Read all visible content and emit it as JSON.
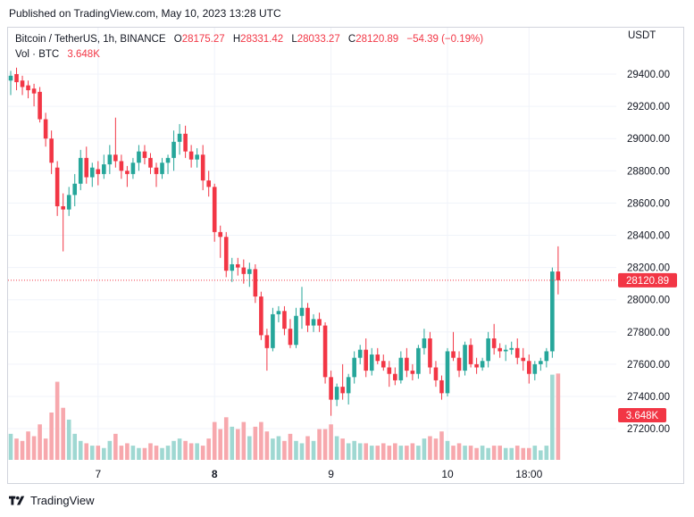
{
  "header": {
    "published": "Published on TradingView.com, May 10, 2023 13:28 UTC"
  },
  "legend": {
    "symbol": "Bitcoin / TetherUS, 1h, BINANCE",
    "o_label": "O",
    "o_value": "28175.27",
    "h_label": "H",
    "h_value": "28331.42",
    "l_label": "L",
    "l_value": "28033.27",
    "c_label": "C",
    "c_value": "28120.89",
    "change": "−54.39 (−0.19%)",
    "vol_label": "Vol · BTC",
    "vol_value": "3.648K"
  },
  "currency": "USDT",
  "footer": {
    "brand": "TradingView"
  },
  "colors": {
    "up": "#26a69a",
    "down": "#f23645",
    "up_vol": "#9fd8d2",
    "down_vol": "#f7a8ad",
    "grid": "#f0f3fa"
  },
  "chart_data": {
    "type": "candlestick",
    "symbol": "BTCUSDT",
    "interval": "1h",
    "ylim": [
      27050,
      29580
    ],
    "yticks": [
      29400,
      29200,
      29000,
      28800,
      28600,
      28400,
      28200,
      28000,
      27800,
      27600,
      27400,
      27200
    ],
    "ytick_labels": [
      "29400.00",
      "29200.00",
      "29000.00",
      "28800.00",
      "28600.00",
      "28400.00",
      "28200.00",
      "28000.00",
      "27800.00",
      "27600.00",
      "27400.00",
      "27200.00"
    ],
    "last_price": 28120.89,
    "last_price_label": "28120.89",
    "last_volume_label": "3.648K",
    "xtick_index": [
      15,
      35,
      55,
      75,
      89
    ],
    "xtick_labels": [
      "7",
      "8",
      "9",
      "10",
      "18:00"
    ],
    "xtick_bold": [
      false,
      true,
      false,
      false,
      false
    ],
    "candles": [
      [
        29360,
        29420,
        29270,
        29390
      ],
      [
        29400,
        29440,
        29300,
        29350
      ],
      [
        29360,
        29390,
        29270,
        29320
      ],
      [
        29330,
        29360,
        29250,
        29300
      ],
      [
        29310,
        29340,
        29200,
        29280
      ],
      [
        29290,
        29320,
        29100,
        29120
      ],
      [
        29120,
        29160,
        28950,
        29000
      ],
      [
        29000,
        29050,
        28780,
        28850
      ],
      [
        28820,
        28860,
        28520,
        28580
      ],
      [
        28580,
        28660,
        28300,
        28560
      ],
      [
        28560,
        28700,
        28520,
        28650
      ],
      [
        28650,
        28780,
        28580,
        28720
      ],
      [
        28720,
        28930,
        28680,
        28880
      ],
      [
        28880,
        28950,
        28720,
        28760
      ],
      [
        28760,
        28850,
        28700,
        28820
      ],
      [
        28810,
        28860,
        28710,
        28780
      ],
      [
        28780,
        28900,
        28750,
        28840
      ],
      [
        28840,
        28960,
        28780,
        28900
      ],
      [
        28900,
        29130,
        28820,
        28860
      ],
      [
        28860,
        28900,
        28750,
        28800
      ],
      [
        28800,
        28830,
        28700,
        28780
      ],
      [
        28780,
        28880,
        28750,
        28850
      ],
      [
        28850,
        28960,
        28800,
        28920
      ],
      [
        28920,
        28960,
        28840,
        28880
      ],
      [
        28880,
        28910,
        28780,
        28820
      ],
      [
        28820,
        28850,
        28700,
        28780
      ],
      [
        28780,
        28880,
        28750,
        28850
      ],
      [
        28850,
        28900,
        28780,
        28880
      ],
      [
        28880,
        29050,
        28800,
        28980
      ],
      [
        28980,
        29090,
        28900,
        29030
      ],
      [
        29030,
        29080,
        28880,
        28920
      ],
      [
        28920,
        28960,
        28820,
        28870
      ],
      [
        28870,
        28940,
        28820,
        28900
      ],
      [
        28900,
        28960,
        28680,
        28740
      ],
      [
        28740,
        28800,
        28640,
        28700
      ],
      [
        28700,
        28720,
        28360,
        28420
      ],
      [
        28420,
        28460,
        28260,
        28390
      ],
      [
        28390,
        28420,
        28140,
        28180
      ],
      [
        28180,
        28260,
        28110,
        28220
      ],
      [
        28220,
        28260,
        28150,
        28200
      ],
      [
        28200,
        28250,
        28100,
        28160
      ],
      [
        28160,
        28230,
        28080,
        28190
      ],
      [
        28190,
        28220,
        27980,
        28020
      ],
      [
        28020,
        28050,
        27750,
        27780
      ],
      [
        27780,
        27820,
        27560,
        27700
      ],
      [
        27700,
        27950,
        27680,
        27910
      ],
      [
        27910,
        27960,
        27860,
        27930
      ],
      [
        27930,
        27960,
        27780,
        27820
      ],
      [
        27820,
        27880,
        27700,
        27720
      ],
      [
        27720,
        27950,
        27700,
        27900
      ],
      [
        27900,
        28080,
        27820,
        27950
      ],
      [
        27950,
        27980,
        27800,
        27840
      ],
      [
        27840,
        27910,
        27800,
        27880
      ],
      [
        27880,
        27920,
        27800,
        27840
      ],
      [
        27840,
        27860,
        27480,
        27520
      ],
      [
        27520,
        27560,
        27280,
        27380
      ],
      [
        27380,
        27480,
        27340,
        27460
      ],
      [
        27460,
        27600,
        27380,
        27420
      ],
      [
        27420,
        27540,
        27350,
        27520
      ],
      [
        27520,
        27680,
        27480,
        27640
      ],
      [
        27640,
        27720,
        27600,
        27690
      ],
      [
        27690,
        27760,
        27520,
        27560
      ],
      [
        27560,
        27700,
        27530,
        27660
      ],
      [
        27660,
        27700,
        27600,
        27620
      ],
      [
        27620,
        27660,
        27560,
        27580
      ],
      [
        27580,
        27620,
        27460,
        27540
      ],
      [
        27540,
        27580,
        27470,
        27500
      ],
      [
        27500,
        27680,
        27480,
        27640
      ],
      [
        27640,
        27700,
        27520,
        27560
      ],
      [
        27560,
        27600,
        27500,
        27540
      ],
      [
        27540,
        27720,
        27510,
        27700
      ],
      [
        27700,
        27820,
        27660,
        27760
      ],
      [
        27760,
        27800,
        27540,
        27580
      ],
      [
        27580,
        27620,
        27460,
        27500
      ],
      [
        27500,
        27530,
        27380,
        27420
      ],
      [
        27420,
        27700,
        27400,
        27680
      ],
      [
        27680,
        27800,
        27620,
        27640
      ],
      [
        27640,
        27680,
        27520,
        27560
      ],
      [
        27560,
        27740,
        27530,
        27720
      ],
      [
        27720,
        27760,
        27580,
        27600
      ],
      [
        27600,
        27640,
        27540,
        27580
      ],
      [
        27580,
        27640,
        27560,
        27620
      ],
      [
        27620,
        27800,
        27580,
        27760
      ],
      [
        27760,
        27850,
        27660,
        27700
      ],
      [
        27700,
        27730,
        27640,
        27680
      ],
      [
        27680,
        27720,
        27620,
        27690
      ],
      [
        27690,
        27740,
        27660,
        27700
      ],
      [
        27700,
        27760,
        27600,
        27640
      ],
      [
        27640,
        27700,
        27560,
        27620
      ],
      [
        27620,
        27660,
        27480,
        27540
      ],
      [
        27540,
        27620,
        27500,
        27600
      ],
      [
        27600,
        27640,
        27560,
        27620
      ],
      [
        27620,
        27700,
        27580,
        27680
      ],
      [
        27680,
        28200,
        27640,
        28175
      ],
      [
        28175.27,
        28331.42,
        28033.27,
        28120.89
      ]
    ],
    "volumes": [
      1.1,
      0.9,
      0.8,
      1.2,
      1.0,
      1.5,
      0.9,
      2.0,
      3.3,
      2.2,
      1.7,
      1.1,
      0.8,
      0.7,
      0.6,
      0.6,
      0.5,
      0.8,
      1.1,
      0.6,
      0.7,
      0.6,
      0.5,
      0.5,
      0.7,
      0.6,
      0.5,
      0.6,
      0.8,
      0.9,
      0.8,
      0.7,
      0.7,
      0.6,
      0.9,
      1.6,
      1.3,
      1.8,
      1.4,
      1.3,
      1.6,
      1.0,
      1.4,
      1.6,
      1.2,
      0.9,
      1.0,
      0.8,
      1.1,
      0.8,
      0.7,
      1.0,
      0.8,
      1.3,
      1.3,
      1.5,
      1.0,
      0.9,
      0.7,
      0.8,
      0.7,
      0.7,
      0.6,
      0.6,
      0.7,
      0.6,
      0.7,
      0.6,
      0.6,
      0.7,
      0.6,
      0.9,
      1.0,
      0.9,
      1.2,
      0.8,
      0.6,
      0.7,
      0.6,
      0.6,
      0.5,
      0.6,
      0.5,
      0.6,
      0.6,
      0.5,
      0.5,
      0.6,
      0.5,
      0.5,
      0.6,
      0.4,
      0.6,
      3.6,
      3.648
    ]
  }
}
